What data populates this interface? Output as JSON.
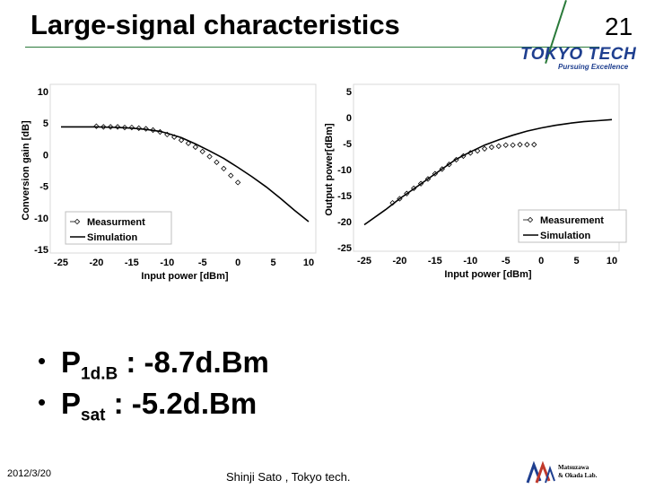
{
  "slide": {
    "title": "Large-signal characteristics",
    "page_number": "21",
    "logo_text": "TOKYO TECH",
    "logo_tagline": "Pursuing Excellence",
    "bullets": [
      {
        "main": "P",
        "sub": "1d.B",
        "rest": " : -8.7d.Bm"
      },
      {
        "main": "P",
        "sub": "sat",
        "rest": " : -5.2d.Bm"
      }
    ],
    "footer_date": "2012/3/20",
    "footer_author": "Shinji Sato , Tokyo tech.",
    "lab_logo_line1": "Matsuzawa",
    "lab_logo_line2": "& Okada Lab."
  },
  "chart_data": [
    {
      "type": "scatter",
      "xlabel": "Input power [dBm]",
      "ylabel": "Conversion gain [dB]",
      "xlim": [
        -25,
        10
      ],
      "ylim": [
        -15,
        10
      ],
      "xticks": [
        -25,
        -20,
        -15,
        -10,
        -5,
        0,
        5,
        10
      ],
      "yticks": [
        -15,
        -10,
        -5,
        0,
        5,
        10
      ],
      "grid": false,
      "legend": "bottom-left",
      "series": [
        {
          "name": "Measurment",
          "style": "diamond-markers",
          "x": [
            -20,
            -19,
            -18,
            -17,
            -16,
            -15,
            -14,
            -13,
            -12,
            -11,
            -10,
            -9,
            -8,
            -7,
            -6,
            -5,
            -4,
            -3,
            -2,
            -1,
            0
          ],
          "y": [
            4.5,
            4.4,
            4.4,
            4.4,
            4.3,
            4.3,
            4.2,
            4.1,
            3.9,
            3.6,
            3.2,
            2.8,
            2.3,
            1.8,
            1.2,
            0.5,
            -0.3,
            -1.2,
            -2.2,
            -3.3,
            -4.4
          ]
        },
        {
          "name": "Simulation",
          "style": "line",
          "x": [
            -25,
            -20,
            -17,
            -15,
            -13,
            -11,
            -10,
            -8,
            -6,
            -4,
            -2,
            0,
            2,
            4,
            6,
            8,
            10
          ],
          "y": [
            4.4,
            4.4,
            4.3,
            4.2,
            4.0,
            3.7,
            3.4,
            2.7,
            1.7,
            0.6,
            -0.6,
            -2.0,
            -3.5,
            -5.1,
            -6.9,
            -8.8,
            -10.6
          ]
        }
      ]
    },
    {
      "type": "scatter",
      "xlabel": "Input power [dBm]",
      "ylabel": "Output power[dBm]",
      "xlim": [
        -25,
        10
      ],
      "ylim": [
        -25,
        5
      ],
      "xticks": [
        -25,
        -20,
        -15,
        -10,
        -5,
        0,
        5,
        10
      ],
      "yticks": [
        -25,
        -20,
        -15,
        -10,
        -5,
        0,
        5
      ],
      "grid": false,
      "legend": "bottom-right",
      "series": [
        {
          "name": "Measurement",
          "style": "diamond-markers",
          "x": [
            -21,
            -20,
            -19,
            -18,
            -17,
            -16,
            -15,
            -14,
            -13,
            -12,
            -11,
            -10,
            -9,
            -8,
            -7,
            -6,
            -5,
            -4,
            -3,
            -2,
            -1
          ],
          "y": [
            -16.4,
            -15.6,
            -14.6,
            -13.6,
            -12.7,
            -11.8,
            -10.8,
            -9.9,
            -9.0,
            -8.1,
            -7.4,
            -6.8,
            -6.4,
            -6.0,
            -5.7,
            -5.5,
            -5.3,
            -5.3,
            -5.2,
            -5.2,
            -5.2
          ]
        },
        {
          "name": "Simulation",
          "style": "line",
          "x": [
            -25,
            -22,
            -20,
            -18,
            -16,
            -14,
            -12,
            -10,
            -8,
            -6,
            -4,
            -2,
            0,
            2,
            4,
            6,
            8,
            10
          ],
          "y": [
            -20.6,
            -17.7,
            -15.6,
            -13.7,
            -11.8,
            -9.9,
            -8.0,
            -6.6,
            -5.3,
            -4.3,
            -3.4,
            -2.6,
            -2.0,
            -1.5,
            -1.1,
            -0.8,
            -0.6,
            -0.4
          ]
        }
      ]
    }
  ]
}
